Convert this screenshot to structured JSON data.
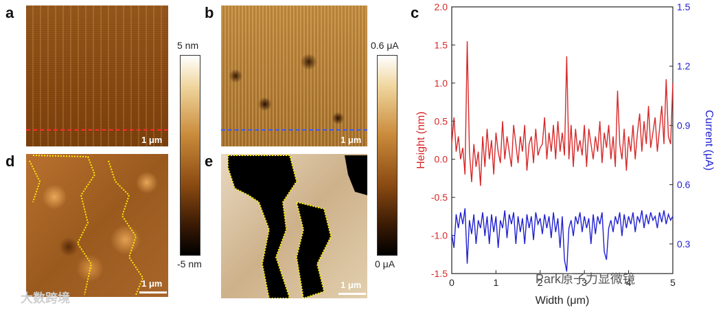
{
  "panels": {
    "a": {
      "letter": "a",
      "scalebar": "1 μm"
    },
    "b": {
      "letter": "b",
      "scalebar": "1 μm"
    },
    "c": {
      "letter": "c"
    },
    "d": {
      "letter": "d",
      "scalebar": "1 μm"
    },
    "e": {
      "letter": "e",
      "scalebar": "1 μm"
    }
  },
  "colorbar_height": {
    "top": "5 nm",
    "bottom": "-5 nm"
  },
  "colorbar_current": {
    "top": "0.6 μA",
    "bottom": "0 μA"
  },
  "colors": {
    "height": "#d62728",
    "current": "#1f1fd0",
    "afm_brown": "#8a4a12"
  },
  "chart_data": {
    "type": "line",
    "xlabel": "Width (μm)",
    "ylabel_left": "Height (nm)",
    "ylabel_right": "Current (μA)",
    "xlim": [
      0,
      5
    ],
    "ylim_left": [
      -1.5,
      2.0
    ],
    "ylim_right": [
      0.15,
      1.5
    ],
    "x_ticks": [
      "0",
      "1",
      "2",
      "3",
      "4",
      "5"
    ],
    "y_ticks_left": [
      "2.0",
      "1.5",
      "1.0",
      "0.5",
      "0.0",
      "-0.5",
      "-1.0",
      "-1.5"
    ],
    "y_ticks_right": [
      "1.5",
      "1.2",
      "0.9",
      "0.6",
      "0.3"
    ],
    "series": [
      {
        "axis": "left",
        "x": [
          0,
          0.05,
          0.1,
          0.15,
          0.2,
          0.25,
          0.3,
          0.35,
          0.4,
          0.45,
          0.5,
          0.55,
          0.6,
          0.65,
          0.7,
          0.75,
          0.8,
          0.85,
          0.9,
          0.95,
          1.0,
          1.05,
          1.1,
          1.15,
          1.2,
          1.25,
          1.3,
          1.35,
          1.4,
          1.45,
          1.5,
          1.55,
          1.6,
          1.65,
          1.7,
          1.75,
          1.8,
          1.85,
          1.9,
          1.95,
          2.0,
          2.05,
          2.1,
          2.15,
          2.2,
          2.25,
          2.3,
          2.35,
          2.4,
          2.45,
          2.5,
          2.55,
          2.6,
          2.65,
          2.7,
          2.75,
          2.8,
          2.85,
          2.9,
          2.95,
          3.0,
          3.05,
          3.1,
          3.15,
          3.2,
          3.25,
          3.3,
          3.35,
          3.4,
          3.45,
          3.5,
          3.55,
          3.6,
          3.65,
          3.7,
          3.75,
          3.8,
          3.85,
          3.9,
          3.95,
          4.0,
          4.05,
          4.1,
          4.15,
          4.2,
          4.25,
          4.3,
          4.35,
          4.4,
          4.45,
          4.5,
          4.55,
          4.6,
          4.65,
          4.7,
          4.75,
          4.8,
          4.85,
          4.9,
          4.95,
          5.0
        ],
        "y": [
          0.2,
          0.55,
          0.1,
          0.3,
          0.0,
          0.15,
          -0.2,
          1.55,
          0.1,
          -0.3,
          0.2,
          -0.1,
          0.1,
          -0.35,
          0.3,
          -0.1,
          0.4,
          0.0,
          0.25,
          -0.2,
          0.35,
          0.1,
          -0.05,
          0.5,
          0.0,
          0.3,
          0.1,
          -0.1,
          0.45,
          0.2,
          -0.05,
          0.3,
          0.1,
          0.45,
          -0.15,
          0.2,
          0.3,
          -0.05,
          0.4,
          0.05,
          0.15,
          0.2,
          0.55,
          0.0,
          0.35,
          0.1,
          0.45,
          0.0,
          0.5,
          0.1,
          0.35,
          0.05,
          1.35,
          0.0,
          0.45,
          -0.1,
          0.4,
          0.1,
          0.25,
          0.05,
          0.45,
          -0.1,
          0.4,
          0.2,
          0.0,
          0.3,
          0.1,
          0.5,
          -0.05,
          0.35,
          0.15,
          0.45,
          0.0,
          0.3,
          -0.1,
          0.9,
          0.2,
          0.0,
          0.4,
          -0.15,
          0.3,
          0.1,
          0.45,
          0.0,
          0.35,
          0.6,
          0.1,
          0.5,
          0.2,
          0.7,
          0.15,
          0.35,
          0.55,
          0.1,
          0.4,
          0.7,
          0.2,
          1.05,
          0.3,
          0.2,
          1.0
        ]
      },
      {
        "axis": "right",
        "x": [
          0,
          0.05,
          0.1,
          0.15,
          0.2,
          0.25,
          0.3,
          0.35,
          0.4,
          0.45,
          0.5,
          0.55,
          0.6,
          0.65,
          0.7,
          0.75,
          0.8,
          0.85,
          0.9,
          0.95,
          1.0,
          1.05,
          1.1,
          1.15,
          1.2,
          1.25,
          1.3,
          1.35,
          1.4,
          1.45,
          1.5,
          1.55,
          1.6,
          1.65,
          1.7,
          1.75,
          1.8,
          1.85,
          1.9,
          1.95,
          2.0,
          2.05,
          2.1,
          2.15,
          2.2,
          2.25,
          2.3,
          2.35,
          2.4,
          2.45,
          2.5,
          2.55,
          2.6,
          2.65,
          2.7,
          2.75,
          2.8,
          2.85,
          2.9,
          2.95,
          3.0,
          3.05,
          3.1,
          3.15,
          3.2,
          3.25,
          3.3,
          3.35,
          3.4,
          3.45,
          3.5,
          3.55,
          3.6,
          3.65,
          3.7,
          3.75,
          3.8,
          3.85,
          3.9,
          3.95,
          4.0,
          4.05,
          4.1,
          4.15,
          4.2,
          4.25,
          4.3,
          4.35,
          4.4,
          4.45,
          4.5,
          4.55,
          4.6,
          4.65,
          4.7,
          4.75,
          4.8,
          4.85,
          4.9,
          4.95,
          5.0
        ],
        "y": [
          0.35,
          0.28,
          0.45,
          0.38,
          0.46,
          0.4,
          0.48,
          0.2,
          0.42,
          0.35,
          0.45,
          0.3,
          0.42,
          0.38,
          0.46,
          0.34,
          0.44,
          0.3,
          0.45,
          0.36,
          0.44,
          0.28,
          0.42,
          0.38,
          0.47,
          0.33,
          0.45,
          0.4,
          0.46,
          0.3,
          0.44,
          0.36,
          0.43,
          0.3,
          0.45,
          0.38,
          0.44,
          0.32,
          0.46,
          0.4,
          0.43,
          0.35,
          0.45,
          0.38,
          0.44,
          0.33,
          0.46,
          0.36,
          0.43,
          0.28,
          0.44,
          0.22,
          0.16,
          0.38,
          0.42,
          0.34,
          0.44,
          0.4,
          0.46,
          0.36,
          0.44,
          0.38,
          0.43,
          0.3,
          0.45,
          0.35,
          0.44,
          0.4,
          0.46,
          0.26,
          0.22,
          0.38,
          0.42,
          0.36,
          0.44,
          0.4,
          0.46,
          0.34,
          0.45,
          0.38,
          0.44,
          0.4,
          0.46,
          0.36,
          0.44,
          0.41,
          0.47,
          0.38,
          0.45,
          0.4,
          0.46,
          0.42,
          0.44,
          0.38,
          0.46,
          0.41,
          0.47,
          0.4,
          0.45,
          0.42,
          0.44
        ]
      }
    ]
  },
  "watermarks": {
    "left": "大数跨境",
    "right": "Park原子力显微镜"
  }
}
